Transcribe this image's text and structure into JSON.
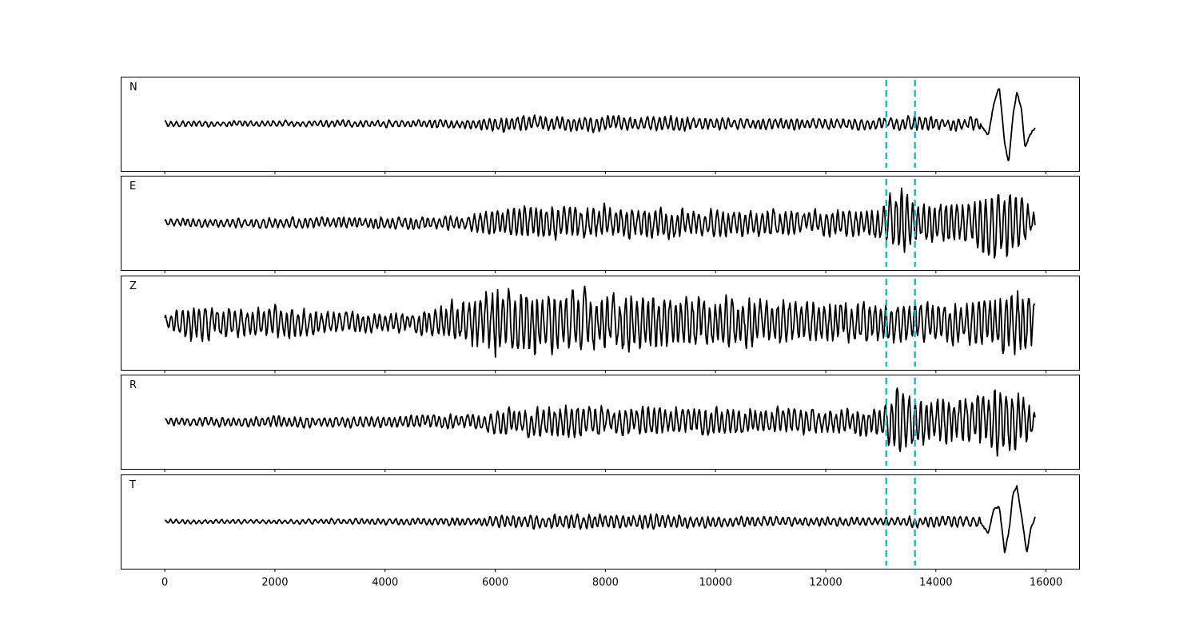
{
  "chart_data": {
    "type": "line",
    "xlim": [
      -800,
      16600
    ],
    "x_ticks": [
      0,
      2000,
      4000,
      6000,
      8000,
      10000,
      12000,
      14000,
      16000
    ],
    "x_tick_labels": [
      "0",
      "2000",
      "4000",
      "6000",
      "8000",
      "10000",
      "12000",
      "14000",
      "16000"
    ],
    "shared_x_axis": true,
    "y_axis_ticks_shown": false,
    "markers": {
      "style": "dashed vertical lines",
      "color": "#17becf",
      "x": [
        13100,
        13620
      ]
    },
    "trace_x_range": [
      0,
      15800
    ],
    "trace_color": "#000000",
    "series": [
      {
        "name": "N",
        "ylim": [
          -1.2,
          1.2
        ],
        "envelope": [
          [
            0,
            0.08
          ],
          [
            2000,
            0.08
          ],
          [
            4000,
            0.1
          ],
          [
            5500,
            0.12
          ],
          [
            6000,
            0.2
          ],
          [
            7000,
            0.2
          ],
          [
            8000,
            0.2
          ],
          [
            9000,
            0.22
          ],
          [
            10000,
            0.15
          ],
          [
            12000,
            0.15
          ],
          [
            13000,
            0.15
          ],
          [
            13600,
            0.22
          ],
          [
            14500,
            0.15
          ],
          [
            14700,
            0.2
          ]
        ],
        "late_wave": [
          [
            14800,
            0.0
          ],
          [
            14950,
            -0.3
          ],
          [
            15050,
            0.5
          ],
          [
            15150,
            0.95
          ],
          [
            15250,
            -0.5
          ],
          [
            15320,
            -1.0
          ],
          [
            15400,
            0.2
          ],
          [
            15470,
            0.8
          ],
          [
            15550,
            0.4
          ],
          [
            15620,
            -0.6
          ],
          [
            15700,
            -0.3
          ],
          [
            15800,
            -0.1
          ]
        ]
      },
      {
        "name": "E",
        "ylim": [
          -1.2,
          1.2
        ],
        "envelope": [
          [
            0,
            0.1
          ],
          [
            2000,
            0.15
          ],
          [
            4000,
            0.15
          ],
          [
            5500,
            0.2
          ],
          [
            6000,
            0.4
          ],
          [
            7000,
            0.45
          ],
          [
            8000,
            0.45
          ],
          [
            10000,
            0.35
          ],
          [
            12000,
            0.35
          ],
          [
            13000,
            0.4
          ],
          [
            13200,
            0.8
          ],
          [
            13400,
            0.9
          ],
          [
            13700,
            0.55
          ],
          [
            14500,
            0.6
          ],
          [
            15000,
            0.9
          ],
          [
            15500,
            0.85
          ],
          [
            15800,
            0.3
          ]
        ],
        "late_wave": []
      },
      {
        "name": "Z",
        "ylim": [
          -1.2,
          1.2
        ],
        "envelope": [
          [
            0,
            0.2
          ],
          [
            500,
            0.5
          ],
          [
            1500,
            0.35
          ],
          [
            2100,
            0.5
          ],
          [
            3000,
            0.3
          ],
          [
            4500,
            0.25
          ],
          [
            5000,
            0.5
          ],
          [
            5800,
            0.7
          ],
          [
            6000,
            1.0
          ],
          [
            6500,
            0.9
          ],
          [
            7500,
            0.8
          ],
          [
            9000,
            0.75
          ],
          [
            10000,
            0.7
          ],
          [
            12000,
            0.6
          ],
          [
            13000,
            0.5
          ],
          [
            14000,
            0.55
          ],
          [
            15000,
            0.7
          ],
          [
            15400,
            1.0
          ],
          [
            15800,
            0.8
          ]
        ],
        "late_wave": []
      },
      {
        "name": "R",
        "ylim": [
          -1.2,
          1.2
        ],
        "envelope": [
          [
            0,
            0.1
          ],
          [
            2000,
            0.15
          ],
          [
            4000,
            0.15
          ],
          [
            5500,
            0.2
          ],
          [
            6000,
            0.35
          ],
          [
            7000,
            0.45
          ],
          [
            8000,
            0.4
          ],
          [
            10000,
            0.35
          ],
          [
            12000,
            0.35
          ],
          [
            13000,
            0.4
          ],
          [
            13300,
            1.0
          ],
          [
            13600,
            0.7
          ],
          [
            14000,
            0.55
          ],
          [
            15000,
            0.85
          ],
          [
            15500,
            0.8
          ],
          [
            15800,
            0.3
          ]
        ],
        "late_wave": []
      },
      {
        "name": "T",
        "ylim": [
          -1.2,
          1.2
        ],
        "envelope": [
          [
            0,
            0.06
          ],
          [
            2000,
            0.06
          ],
          [
            4000,
            0.08
          ],
          [
            5500,
            0.1
          ],
          [
            6000,
            0.15
          ],
          [
            7000,
            0.2
          ],
          [
            8000,
            0.2
          ],
          [
            9000,
            0.2
          ],
          [
            10000,
            0.15
          ],
          [
            12000,
            0.12
          ],
          [
            13000,
            0.1
          ],
          [
            13600,
            0.15
          ],
          [
            14500,
            0.15
          ],
          [
            14700,
            0.15
          ]
        ],
        "late_wave": [
          [
            14800,
            0.0
          ],
          [
            14950,
            -0.3
          ],
          [
            15050,
            0.3
          ],
          [
            15150,
            0.4
          ],
          [
            15250,
            -0.8
          ],
          [
            15330,
            -0.2
          ],
          [
            15400,
            0.7
          ],
          [
            15470,
            0.9
          ],
          [
            15550,
            0.2
          ],
          [
            15650,
            -0.8
          ],
          [
            15720,
            -0.2
          ],
          [
            15800,
            0.1
          ]
        ]
      }
    ]
  }
}
